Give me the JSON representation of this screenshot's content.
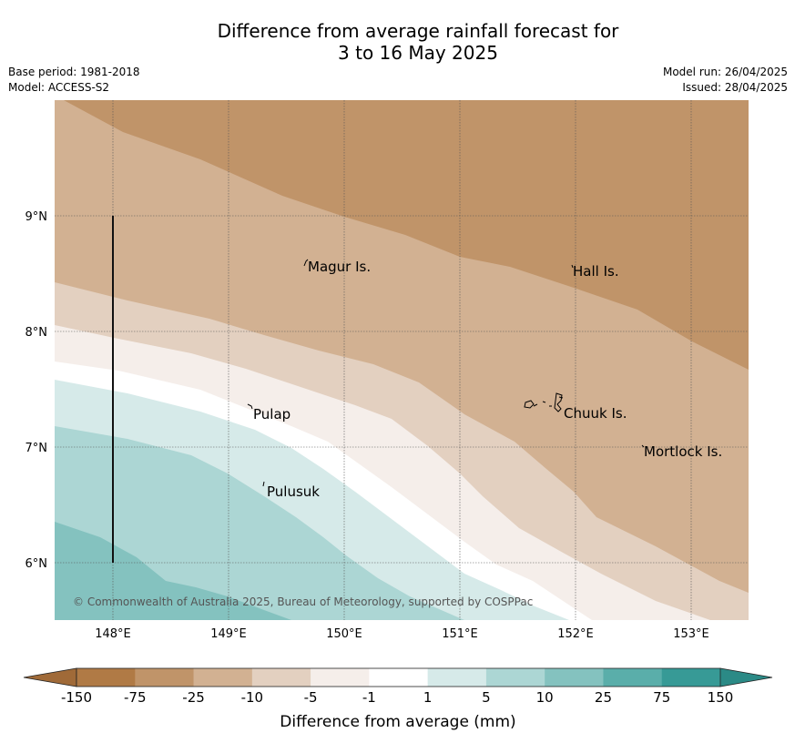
{
  "header": {
    "title_line1": "Difference from average rainfall forecast for",
    "title_line2": "3 to 16 May 2025",
    "base_period": "Base period: 1981-2018",
    "model": "Model: ACCESS-S2",
    "model_run": "Model run: 26/04/2025",
    "issued": "Issued: 28/04/2025"
  },
  "map": {
    "lon_ticks": [
      "148°E",
      "149°E",
      "150°E",
      "151°E",
      "152°E",
      "153°E"
    ],
    "lat_ticks": [
      "9°N",
      "8°N",
      "7°N",
      "6°N"
    ],
    "places": [
      {
        "name": "Magur Is."
      },
      {
        "name": "Hall Is."
      },
      {
        "name": "Pulap"
      },
      {
        "name": "Chuuk Is."
      },
      {
        "name": "Mortlock Is."
      },
      {
        "name": "Pulusuk"
      }
    ],
    "copyright": "© Commonwealth of Australia 2025, Bureau of Meteorology, supported by COSPPac",
    "colors": {
      "-150_-75": "#b07a45",
      "-75_-25": "#c09469",
      "-25_-10": "#d2b192",
      "-10_-5": "#e3d0c0",
      "-5_-1": "#f5eeea",
      "-1_1": "#ffffff",
      "1_5": "#d6eae9",
      "5_10": "#acd6d4",
      "10_25": "#84c2bf",
      "25_75": "#5aaeaa",
      "75_150": "#379a96"
    }
  },
  "colorbar": {
    "labels": [
      "-150",
      "-75",
      "-25",
      "-10",
      "-5",
      "-1",
      "1",
      "5",
      "10",
      "25",
      "75",
      "150"
    ],
    "colors": [
      "#b07a45",
      "#c09469",
      "#d2b192",
      "#e3d0c0",
      "#f5eeea",
      "#ffffff",
      "#d6eae9",
      "#acd6d4",
      "#84c2bf",
      "#5aaeaa",
      "#379a96"
    ],
    "under_color": "#a06a38",
    "over_color": "#2b8a86",
    "title": "Difference from average (mm)"
  }
}
